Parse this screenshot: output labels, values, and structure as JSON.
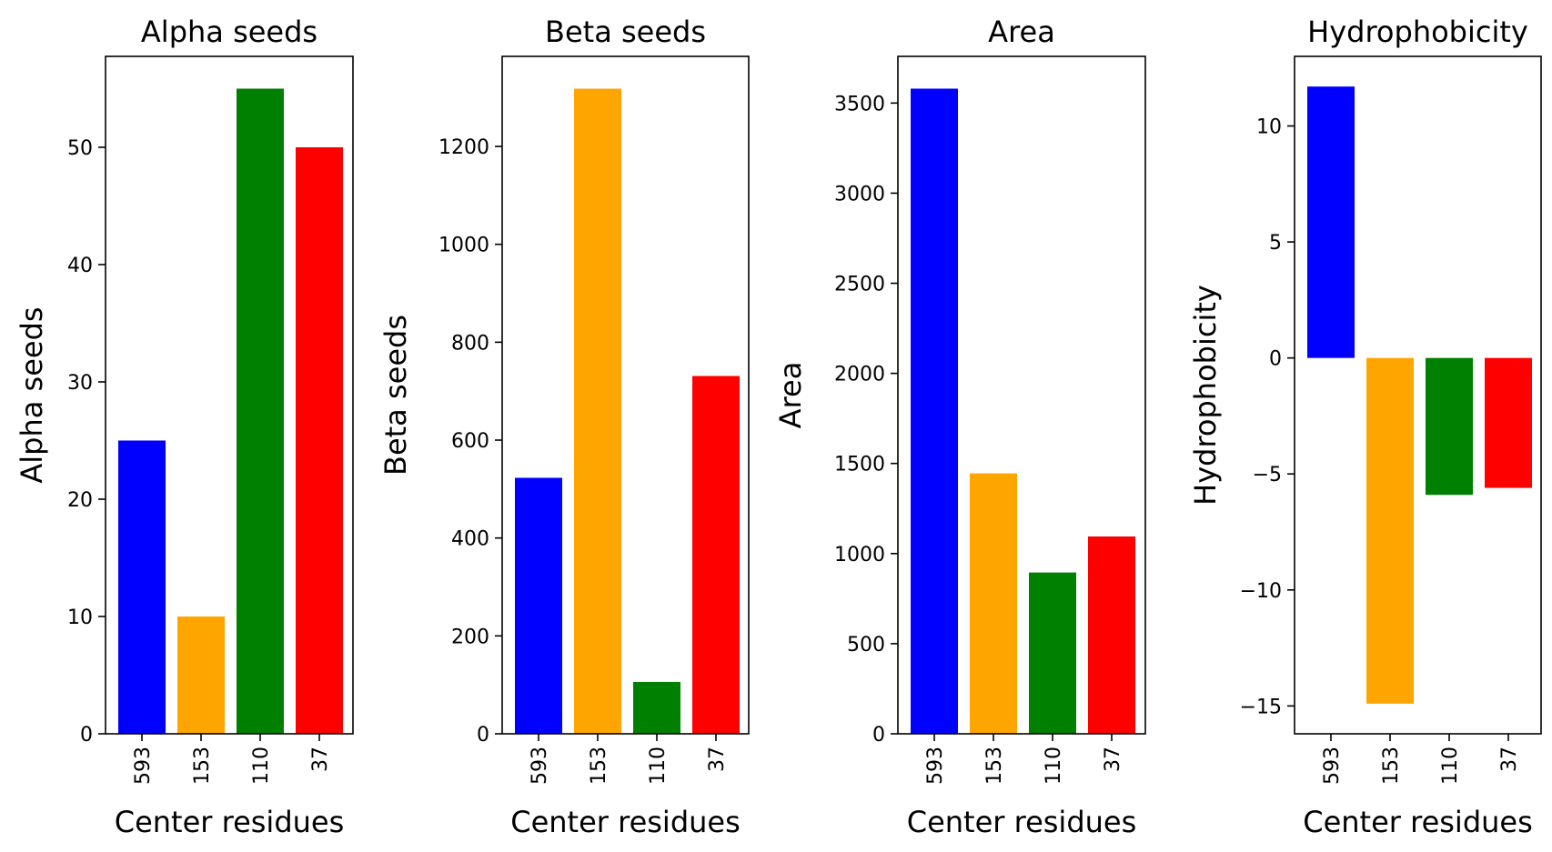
{
  "chart_data": [
    {
      "type": "bar",
      "title": "Alpha seeds",
      "xlabel": "Center residues",
      "ylabel": "Alpha seeds",
      "categories": [
        "593",
        "153",
        "110",
        "37"
      ],
      "values": [
        25,
        10,
        55,
        50
      ],
      "colors": [
        "#0000ff",
        "#ffa500",
        "#008000",
        "#ff0000"
      ],
      "ylim": [
        0,
        57.75
      ],
      "yticks": [
        0,
        10,
        20,
        30,
        40,
        50
      ],
      "ytick_labels": [
        "0",
        "10",
        "20",
        "30",
        "40",
        "50"
      ],
      "grid": false
    },
    {
      "type": "bar",
      "title": "Beta seeds",
      "xlabel": "Center residues",
      "ylabel": "Beta seeds",
      "categories": [
        "593",
        "153",
        "110",
        "37"
      ],
      "values": [
        523,
        1318,
        106,
        731
      ],
      "colors": [
        "#0000ff",
        "#ffa500",
        "#008000",
        "#ff0000"
      ],
      "ylim": [
        0,
        1384
      ],
      "yticks": [
        0,
        200,
        400,
        600,
        800,
        1000,
        1200
      ],
      "ytick_labels": [
        "0",
        "200",
        "400",
        "600",
        "800",
        "1000",
        "1200"
      ],
      "grid": false
    },
    {
      "type": "bar",
      "title": "Area",
      "xlabel": "Center residues",
      "ylabel": "Area",
      "categories": [
        "593",
        "153",
        "110",
        "37"
      ],
      "values": [
        3580,
        1445,
        895,
        1095
      ],
      "colors": [
        "#0000ff",
        "#ffa500",
        "#008000",
        "#ff0000"
      ],
      "ylim": [
        0,
        3759
      ],
      "yticks": [
        0,
        500,
        1000,
        1500,
        2000,
        2500,
        3000,
        3500
      ],
      "ytick_labels": [
        "0",
        "500",
        "1000",
        "1500",
        "2000",
        "2500",
        "3000",
        "3500"
      ],
      "grid": false
    },
    {
      "type": "bar",
      "title": "Hydrophobicity",
      "xlabel": "Center residues",
      "ylabel": "Hydrophobicity",
      "categories": [
        "593",
        "153",
        "110",
        "37"
      ],
      "values": [
        11.7,
        -14.9,
        -5.9,
        -5.6
      ],
      "colors": [
        "#0000ff",
        "#ffa500",
        "#008000",
        "#ff0000"
      ],
      "ylim": [
        -16.2,
        13.0
      ],
      "yticks": [
        -15,
        -10,
        -5,
        0,
        5,
        10
      ],
      "ytick_labels": [
        "−15",
        "−10",
        "−5",
        "0",
        "5",
        "10"
      ],
      "grid": false
    }
  ]
}
